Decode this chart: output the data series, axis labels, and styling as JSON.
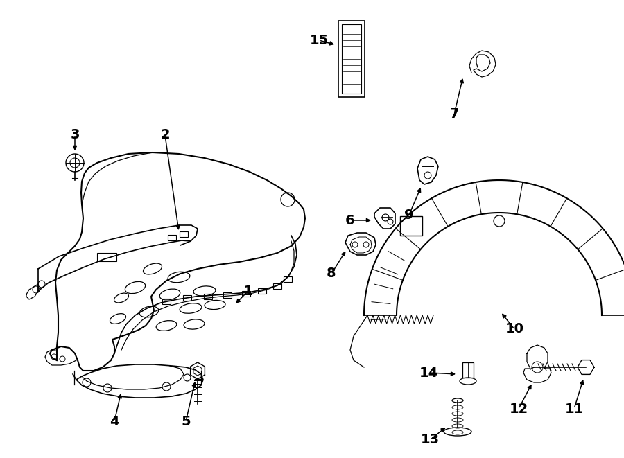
{
  "background_color": "#ffffff",
  "line_color": "#000000",
  "label_fontsize": 14,
  "fig_width": 9.0,
  "fig_height": 6.61,
  "dpi": 100
}
